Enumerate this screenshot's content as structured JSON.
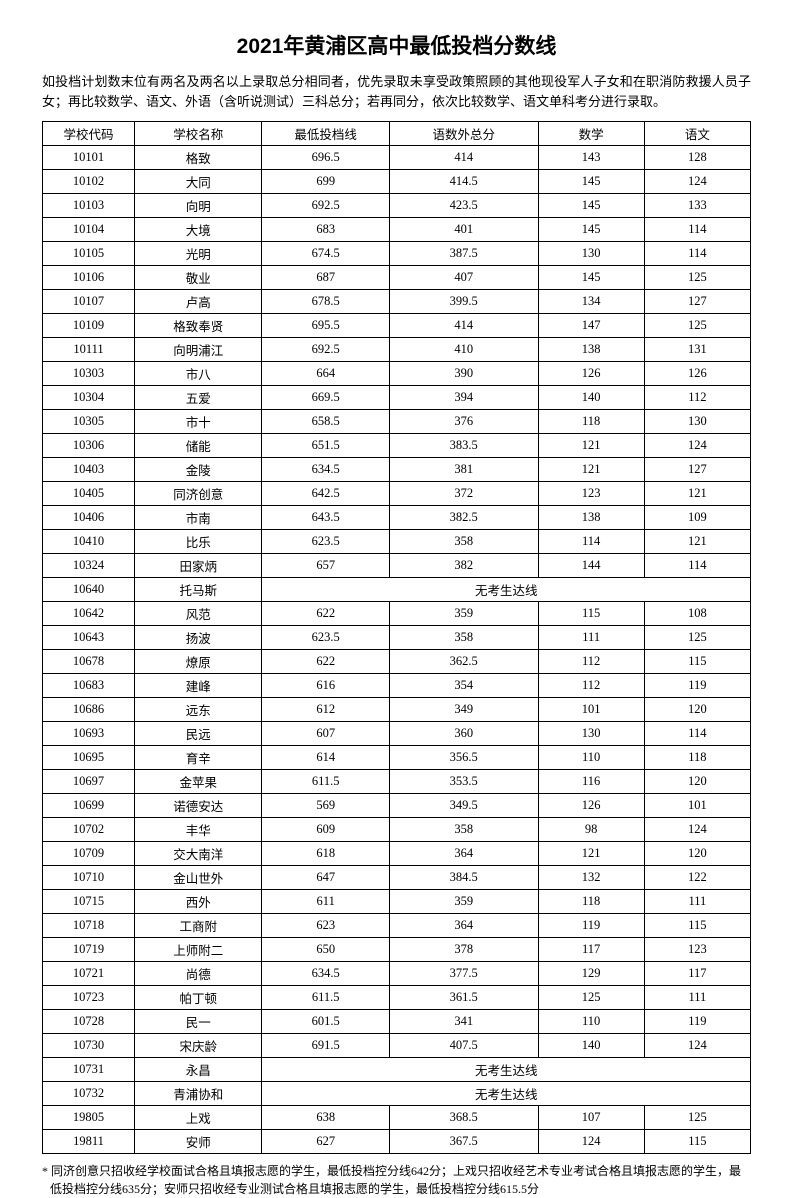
{
  "title": "2021年黄浦区高中最低投档分数线",
  "intro": "如投档计划数末位有两名及两名以上录取总分相同者，优先录取未享受政策照顾的其他现役军人子女和在职消防救援人员子女；再比较数学、语文、外语（含听说测试）三科总分；若再同分，依次比较数学、语文单科考分进行录取。",
  "headers": {
    "code": "学校代码",
    "name": "学校名称",
    "score": "最低投档线",
    "total": "语数外总分",
    "math": "数学",
    "chinese": "语文"
  },
  "no_pass_text": "无考生达线",
  "rows": [
    {
      "code": "10101",
      "name": "格致",
      "score": "696.5",
      "total": "414",
      "math": "143",
      "chinese": "128"
    },
    {
      "code": "10102",
      "name": "大同",
      "score": "699",
      "total": "414.5",
      "math": "145",
      "chinese": "124"
    },
    {
      "code": "10103",
      "name": "向明",
      "score": "692.5",
      "total": "423.5",
      "math": "145",
      "chinese": "133"
    },
    {
      "code": "10104",
      "name": "大境",
      "score": "683",
      "total": "401",
      "math": "145",
      "chinese": "114"
    },
    {
      "code": "10105",
      "name": "光明",
      "score": "674.5",
      "total": "387.5",
      "math": "130",
      "chinese": "114"
    },
    {
      "code": "10106",
      "name": "敬业",
      "score": "687",
      "total": "407",
      "math": "145",
      "chinese": "125"
    },
    {
      "code": "10107",
      "name": "卢高",
      "score": "678.5",
      "total": "399.5",
      "math": "134",
      "chinese": "127"
    },
    {
      "code": "10109",
      "name": "格致奉贤",
      "score": "695.5",
      "total": "414",
      "math": "147",
      "chinese": "125"
    },
    {
      "code": "10111",
      "name": "向明浦江",
      "score": "692.5",
      "total": "410",
      "math": "138",
      "chinese": "131"
    },
    {
      "code": "10303",
      "name": "市八",
      "score": "664",
      "total": "390",
      "math": "126",
      "chinese": "126"
    },
    {
      "code": "10304",
      "name": "五爱",
      "score": "669.5",
      "total": "394",
      "math": "140",
      "chinese": "112"
    },
    {
      "code": "10305",
      "name": "市十",
      "score": "658.5",
      "total": "376",
      "math": "118",
      "chinese": "130"
    },
    {
      "code": "10306",
      "name": "储能",
      "score": "651.5",
      "total": "383.5",
      "math": "121",
      "chinese": "124"
    },
    {
      "code": "10403",
      "name": "金陵",
      "score": "634.5",
      "total": "381",
      "math": "121",
      "chinese": "127"
    },
    {
      "code": "10405",
      "name": "同济创意",
      "score": "642.5",
      "total": "372",
      "math": "123",
      "chinese": "121"
    },
    {
      "code": "10406",
      "name": "市南",
      "score": "643.5",
      "total": "382.5",
      "math": "138",
      "chinese": "109"
    },
    {
      "code": "10410",
      "name": "比乐",
      "score": "623.5",
      "total": "358",
      "math": "114",
      "chinese": "121"
    },
    {
      "code": "10324",
      "name": "田家炳",
      "score": "657",
      "total": "382",
      "math": "144",
      "chinese": "114"
    },
    {
      "code": "10640",
      "name": "托马斯",
      "merged": true
    },
    {
      "code": "10642",
      "name": "风范",
      "score": "622",
      "total": "359",
      "math": "115",
      "chinese": "108"
    },
    {
      "code": "10643",
      "name": "扬波",
      "score": "623.5",
      "total": "358",
      "math": "111",
      "chinese": "125"
    },
    {
      "code": "10678",
      "name": "燎原",
      "score": "622",
      "total": "362.5",
      "math": "112",
      "chinese": "115"
    },
    {
      "code": "10683",
      "name": "建峰",
      "score": "616",
      "total": "354",
      "math": "112",
      "chinese": "119"
    },
    {
      "code": "10686",
      "name": "远东",
      "score": "612",
      "total": "349",
      "math": "101",
      "chinese": "120"
    },
    {
      "code": "10693",
      "name": "民远",
      "score": "607",
      "total": "360",
      "math": "130",
      "chinese": "114"
    },
    {
      "code": "10695",
      "name": "育辛",
      "score": "614",
      "total": "356.5",
      "math": "110",
      "chinese": "118"
    },
    {
      "code": "10697",
      "name": "金苹果",
      "score": "611.5",
      "total": "353.5",
      "math": "116",
      "chinese": "120"
    },
    {
      "code": "10699",
      "name": "诺德安达",
      "score": "569",
      "total": "349.5",
      "math": "126",
      "chinese": "101"
    },
    {
      "code": "10702",
      "name": "丰华",
      "score": "609",
      "total": "358",
      "math": "98",
      "chinese": "124"
    },
    {
      "code": "10709",
      "name": "交大南洋",
      "score": "618",
      "total": "364",
      "math": "121",
      "chinese": "120"
    },
    {
      "code": "10710",
      "name": "金山世外",
      "score": "647",
      "total": "384.5",
      "math": "132",
      "chinese": "122"
    },
    {
      "code": "10715",
      "name": "西外",
      "score": "611",
      "total": "359",
      "math": "118",
      "chinese": "111"
    },
    {
      "code": "10718",
      "name": "工商附",
      "score": "623",
      "total": "364",
      "math": "119",
      "chinese": "115"
    },
    {
      "code": "10719",
      "name": "上师附二",
      "score": "650",
      "total": "378",
      "math": "117",
      "chinese": "123"
    },
    {
      "code": "10721",
      "name": "尚德",
      "score": "634.5",
      "total": "377.5",
      "math": "129",
      "chinese": "117"
    },
    {
      "code": "10723",
      "name": "帕丁顿",
      "score": "611.5",
      "total": "361.5",
      "math": "125",
      "chinese": "111"
    },
    {
      "code": "10728",
      "name": "民一",
      "score": "601.5",
      "total": "341",
      "math": "110",
      "chinese": "119"
    },
    {
      "code": "10730",
      "name": "宋庆龄",
      "score": "691.5",
      "total": "407.5",
      "math": "140",
      "chinese": "124"
    },
    {
      "code": "10731",
      "name": "永昌",
      "merged": true
    },
    {
      "code": "10732",
      "name": "青浦协和",
      "merged": true
    },
    {
      "code": "19805",
      "name": "上戏",
      "score": "638",
      "total": "368.5",
      "math": "107",
      "chinese": "125"
    },
    {
      "code": "19811",
      "name": "安师",
      "score": "627",
      "total": "367.5",
      "math": "124",
      "chinese": "115"
    }
  ],
  "footnote": "* 同济创意只招收经学校面试合格且填报志愿的学生，最低投档控分线642分；上戏只招收经艺术专业考试合格且填报志愿的学生，最低投档控分线635分；安师只招收经专业测试合格且填报志愿的学生，最低投档控分线615.5分"
}
